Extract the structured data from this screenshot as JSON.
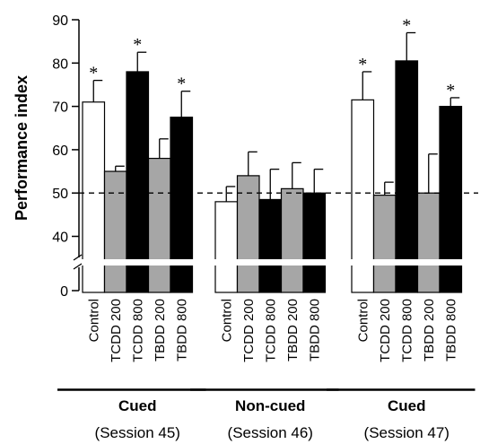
{
  "chart_data": {
    "type": "bar",
    "ylabel": "Performance index",
    "y_ticks": [
      0,
      40,
      50,
      60,
      70,
      80,
      90
    ],
    "y_axis_break": [
      0,
      35
    ],
    "ylim": [
      0,
      90
    ],
    "reference_line": 50,
    "categories": [
      "Control",
      "TCDD 200",
      "TCDD 800",
      "TBDD 200",
      "TBDD 800"
    ],
    "category_colors": [
      "#ffffff",
      "#a6a6a6",
      "#000000",
      "#a6a6a6",
      "#000000"
    ],
    "significance_marker": "*",
    "groups": [
      {
        "label": "Cued",
        "session": "(Session 45)",
        "values": [
          71,
          55,
          78,
          58,
          67.5
        ],
        "errors": [
          5,
          1.2,
          4.5,
          4.5,
          6
        ],
        "significant": [
          true,
          false,
          true,
          false,
          true
        ]
      },
      {
        "label": "Non-cued",
        "session": "(Session 46)",
        "values": [
          48,
          54,
          48.5,
          51,
          50
        ],
        "errors": [
          3.5,
          5.5,
          7,
          6,
          5.5
        ],
        "significant": [
          false,
          false,
          false,
          false,
          false
        ]
      },
      {
        "label": "Cued",
        "session": "(Session 47)",
        "values": [
          71.5,
          49.5,
          80.5,
          50,
          70
        ],
        "errors": [
          6.5,
          3,
          6.5,
          9,
          2
        ],
        "significant": [
          true,
          false,
          true,
          false,
          true
        ]
      }
    ]
  }
}
